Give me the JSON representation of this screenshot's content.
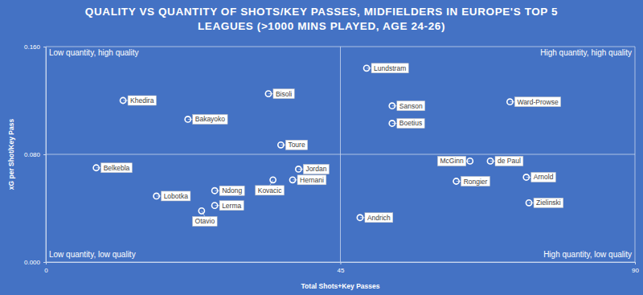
{
  "chart_data": {
    "type": "scatter",
    "title": [
      "QUALITY VS QUANTITY OF SHOTS/KEY PASSES, MIDFIELDERS IN EUROPE'S TOP 5",
      "LEAGUES (>1000 MINS PLAYED, AGE 24-26)"
    ],
    "x_label": "Total Shots+Key Passes",
    "y_label": "xG per Shot/Key Pass",
    "annotations": [
      "Low quantity, high quality",
      "High quantity, high quality",
      "Low quantity, low quality",
      "High quantity, low quality"
    ],
    "labels": [
      "Lundstram",
      "Khedira",
      "Bisoli",
      "Bakayoko",
      "Sanson",
      "Ward-Prowse",
      "Boetius",
      "Toure",
      "Belkebla",
      "Jordan",
      "McGinn",
      "de Paul",
      "Arnold",
      "Kovacic",
      "Hernani",
      "Rongier",
      "Ndong",
      "Lobotka",
      "Lerma",
      "Zielinski",
      "Otavio",
      "Andrich"
    ],
    "x": [
      49.0,
      11.8,
      34.0,
      21.7,
      52.9,
      70.9,
      52.9,
      35.9,
      7.7,
      38.6,
      64.8,
      67.9,
      73.4,
      34.7,
      37.7,
      62.7,
      25.8,
      16.9,
      25.8,
      73.8,
      23.8,
      48.0
    ],
    "values": [
      0.144,
      0.12,
      0.125,
      0.106,
      0.116,
      0.119,
      0.103,
      0.087,
      0.07,
      0.069,
      0.075,
      0.075,
      0.063,
      0.061,
      0.061,
      0.06,
      0.053,
      0.049,
      0.042,
      0.044,
      0.038,
      0.033
    ],
    "color": "#ffffff",
    "marker": "circle",
    "data_labels": true,
    "grid": true,
    "xlim": [
      0,
      90
    ],
    "xticks": [
      0,
      45,
      90
    ],
    "ylim": [
      0,
      0.16
    ],
    "yticks": [
      {
        "value": 0,
        "label": "0.000"
      },
      {
        "value": 0.08,
        "label": "0.080"
      },
      {
        "value": 0.16,
        "label": "0.160"
      }
    ]
  }
}
